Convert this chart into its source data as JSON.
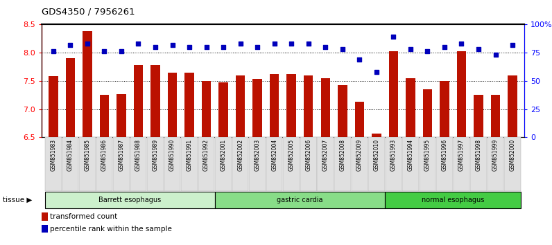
{
  "title": "GDS4350 / 7956261",
  "samples": [
    "GSM851983",
    "GSM851984",
    "GSM851985",
    "GSM851986",
    "GSM851987",
    "GSM851988",
    "GSM851989",
    "GSM851990",
    "GSM851991",
    "GSM851992",
    "GSM852001",
    "GSM852002",
    "GSM852003",
    "GSM852004",
    "GSM852005",
    "GSM852006",
    "GSM852007",
    "GSM852008",
    "GSM852009",
    "GSM852010",
    "GSM851993",
    "GSM851994",
    "GSM851995",
    "GSM851996",
    "GSM851997",
    "GSM851998",
    "GSM851999",
    "GSM852000"
  ],
  "transformed_count": [
    7.58,
    7.9,
    8.38,
    7.25,
    7.26,
    7.78,
    7.78,
    7.65,
    7.65,
    7.5,
    7.47,
    7.6,
    7.53,
    7.62,
    7.62,
    7.6,
    7.55,
    7.42,
    7.13,
    6.57,
    8.02,
    7.55,
    7.35,
    7.5,
    8.02,
    7.25,
    7.25,
    7.6
  ],
  "percentile_rank": [
    76,
    82,
    83,
    76,
    76,
    83,
    80,
    82,
    80,
    80,
    80,
    83,
    80,
    83,
    83,
    83,
    80,
    78,
    69,
    58,
    89,
    78,
    76,
    80,
    83,
    78,
    73,
    82
  ],
  "tissue_groups": [
    {
      "label": "Barrett esophagus",
      "start": 0,
      "end": 10,
      "color": "#ccf0cc"
    },
    {
      "label": "gastric cardia",
      "start": 10,
      "end": 20,
      "color": "#88dd88"
    },
    {
      "label": "normal esophagus",
      "start": 20,
      "end": 28,
      "color": "#44cc44"
    }
  ],
  "ylim_left": [
    6.5,
    8.5
  ],
  "ylim_right": [
    0,
    100
  ],
  "yticks_left": [
    6.5,
    7.0,
    7.5,
    8.0,
    8.5
  ],
  "yticks_right": [
    0,
    25,
    50,
    75,
    100
  ],
  "bar_color": "#bb1100",
  "dot_color": "#0000bb",
  "legend": [
    {
      "label": "transformed count",
      "color": "#bb1100"
    },
    {
      "label": "percentile rank within the sample",
      "color": "#0000bb"
    }
  ]
}
